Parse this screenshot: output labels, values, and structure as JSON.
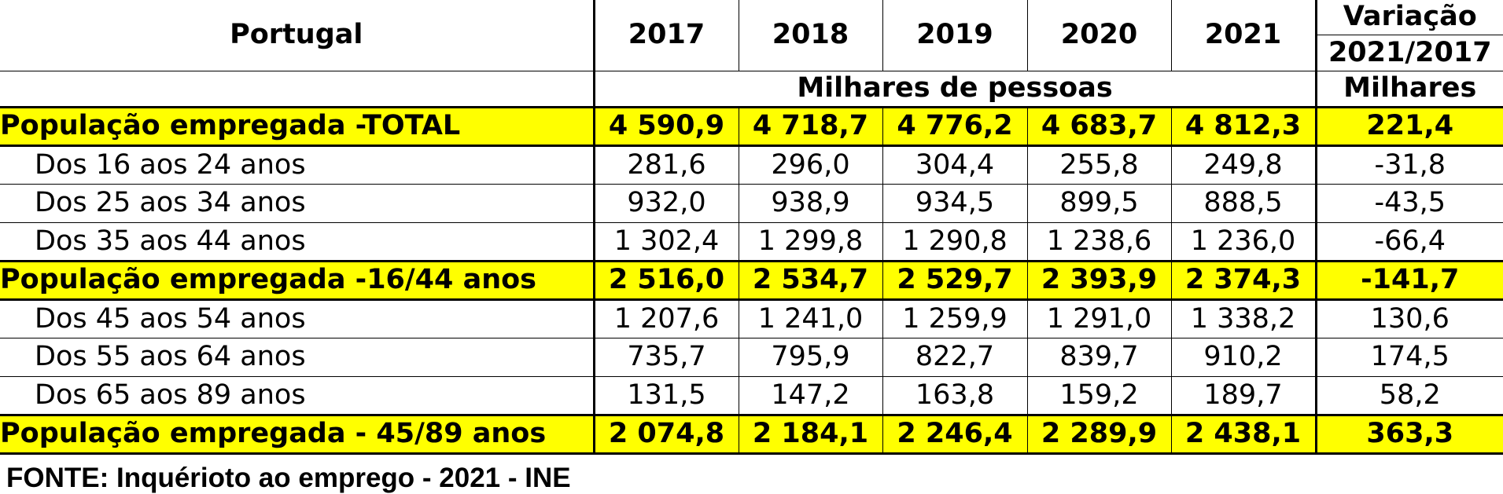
{
  "chart_data": {
    "type": "table",
    "header": {
      "corner": "Portugal",
      "years": [
        "2017",
        "2018",
        "2019",
        "2020",
        "2021"
      ],
      "variation_title": "Variação",
      "variation_period": "2021/2017",
      "unit_years": "Milhares de pessoas",
      "unit_variation": "Milhares"
    },
    "rows": [
      {
        "label": "População empregada -TOTAL",
        "highlight": true,
        "values": [
          "4 590,9",
          "4 718,7",
          "4 776,2",
          "4 683,7",
          "4 812,3"
        ],
        "variation": "221,4"
      },
      {
        "label": "Dos 16 aos 24 anos",
        "highlight": false,
        "values": [
          "281,6",
          "296,0",
          "304,4",
          "255,8",
          "249,8"
        ],
        "variation": "-31,8"
      },
      {
        "label": "Dos 25 aos 34 anos",
        "highlight": false,
        "values": [
          "932,0",
          "938,9",
          "934,5",
          "899,5",
          "888,5"
        ],
        "variation": "-43,5"
      },
      {
        "label": "Dos 35 aos 44 anos",
        "highlight": false,
        "values": [
          "1 302,4",
          "1 299,8",
          "1 290,8",
          "1 238,6",
          "1 236,0"
        ],
        "variation": "-66,4"
      },
      {
        "label": "População empregada -16/44 anos",
        "highlight": true,
        "values": [
          "2 516,0",
          "2 534,7",
          "2 529,7",
          "2 393,9",
          "2 374,3"
        ],
        "variation": "-141,7"
      },
      {
        "label": "Dos 45 aos 54 anos",
        "highlight": false,
        "values": [
          "1 207,6",
          "1 241,0",
          "1 259,9",
          "1 291,0",
          "1 338,2"
        ],
        "variation": "130,6"
      },
      {
        "label": "Dos 55 aos 64 anos",
        "highlight": false,
        "values": [
          "735,7",
          "795,9",
          "822,7",
          "839,7",
          "910,2"
        ],
        "variation": "174,5"
      },
      {
        "label": "Dos 65 aos 89 anos",
        "highlight": false,
        "values": [
          "131,5",
          "147,2",
          "163,8",
          "159,2",
          "189,7"
        ],
        "variation": "58,2"
      },
      {
        "label": "População empregada - 45/89 anos",
        "highlight": true,
        "values": [
          "2 074,8",
          "2 184,1",
          "2 246,4",
          "2 289,9",
          "2 438,1"
        ],
        "variation": "363,3"
      }
    ],
    "highlight_color": "#ffff00"
  },
  "footer": "FONTE: Inquérioto ao emprego - 2021 - INE"
}
